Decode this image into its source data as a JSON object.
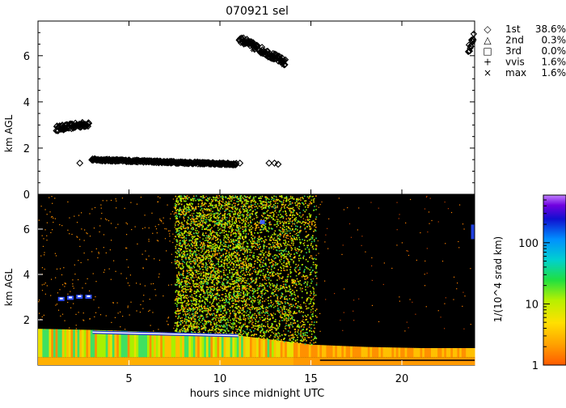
{
  "chart_data": [
    {
      "type": "scatter",
      "title": "070921 sel",
      "xlabel": "",
      "ylabel": "km AGL",
      "xlim": [
        0,
        24
      ],
      "ylim": [
        0,
        7.5
      ],
      "y_ticks": [
        0,
        2,
        4,
        6
      ],
      "legend": {
        "placement": "right",
        "entries": [
          {
            "symbol": "◇",
            "name": "1st",
            "value": "38.6%"
          },
          {
            "symbol": "△",
            "name": "2nd",
            "value": "0.3%"
          },
          {
            "symbol": "□",
            "name": "3rd",
            "value": "0.0%"
          },
          {
            "symbol": "+",
            "name": "vvis",
            "value": "1.6%"
          },
          {
            "symbol": "×",
            "name": "max",
            "value": "1.6%"
          }
        ]
      },
      "series": [
        {
          "name": "1st",
          "segments": [
            {
              "x_start": 1.0,
              "x_end": 2.8,
              "y_start": 2.85,
              "y_end": 3.05,
              "spread": 0.12
            },
            {
              "x_start": 2.95,
              "x_end": 10.9,
              "y_start": 1.5,
              "y_end": 1.3,
              "spread": 0.05
            },
            {
              "x_start": 11.05,
              "x_end": 13.6,
              "y_start": 6.75,
              "y_end": 5.7,
              "spread": 0.15
            },
            {
              "x_start": 23.65,
              "x_end": 23.95,
              "y_start": 6.2,
              "y_end": 6.8,
              "spread": 0.2
            }
          ],
          "points": [
            {
              "x": 2.3,
              "y": 1.35
            },
            {
              "x": 11.1,
              "y": 1.35
            },
            {
              "x": 12.7,
              "y": 1.35
            },
            {
              "x": 13.0,
              "y": 1.35
            },
            {
              "x": 13.2,
              "y": 1.3
            }
          ]
        }
      ]
    },
    {
      "type": "heatmap",
      "title": "",
      "xlabel": "hours since midnight UTC",
      "ylabel": "km AGL",
      "xlim": [
        0,
        24
      ],
      "ylim": [
        0,
        7.5
      ],
      "x_ticks": [
        5,
        10,
        15,
        20
      ],
      "y_ticks": [
        2,
        4,
        6
      ],
      "colorbar": {
        "label": "1/(10^4 srad km)",
        "scale": "log",
        "range": [
          1,
          600
        ],
        "ticks": [
          1,
          10,
          100
        ]
      },
      "boundary_layer": {
        "x": [
          0,
          3,
          5,
          7,
          9,
          11,
          13,
          15,
          18,
          21,
          24
        ],
        "top_km": [
          1.6,
          1.55,
          1.5,
          1.45,
          1.35,
          1.3,
          1.1,
          0.9,
          0.8,
          0.75,
          0.75
        ]
      },
      "cloud_band": {
        "x_start": 3.0,
        "x_end": 11.0,
        "y_start": 1.45,
        "y_end": 1.3
      },
      "precip_columns": [
        {
          "x_start": 7.5,
          "x_end": 11.5,
          "density": "high"
        },
        {
          "x_start": 11.5,
          "x_end": 14.0,
          "density": "medium"
        },
        {
          "x_start": 14.0,
          "x_end": 15.3,
          "density": "low"
        }
      ]
    }
  ]
}
